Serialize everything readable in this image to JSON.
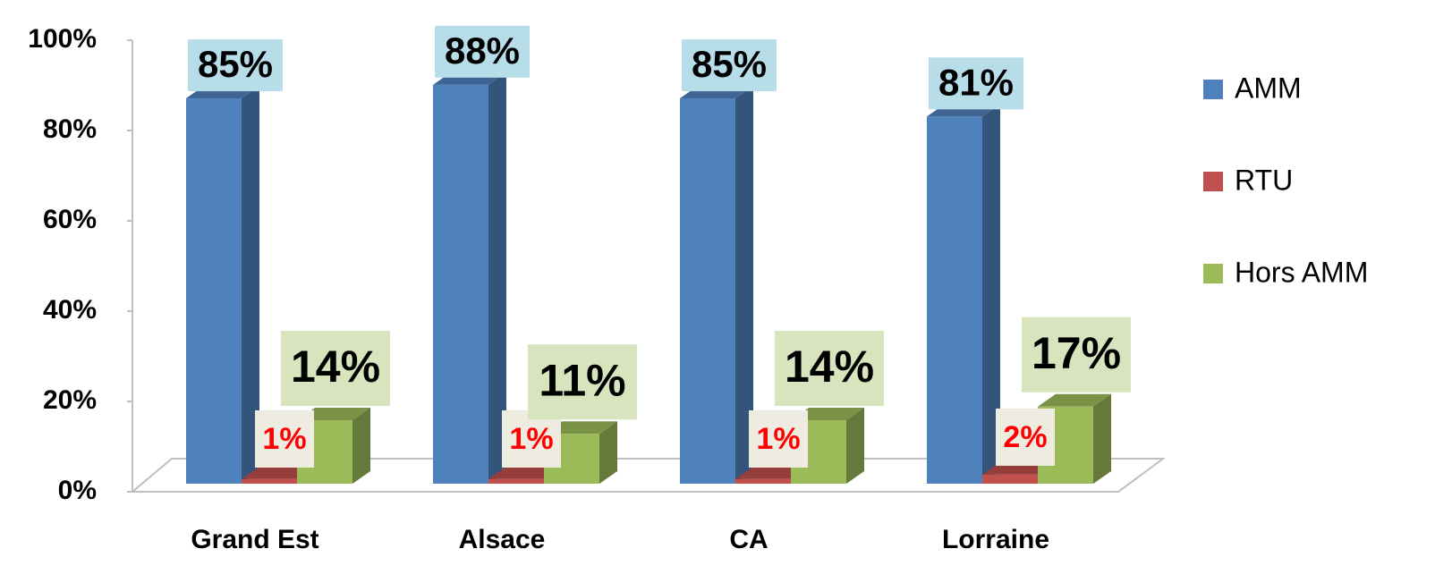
{
  "chart_data": {
    "type": "bar3d",
    "categories": [
      "Grand Est",
      "Alsace",
      "CA",
      "Lorraine"
    ],
    "series": [
      {
        "name": "AMM",
        "color": "#4f81bd",
        "values": [
          85,
          88,
          85,
          81
        ],
        "value_labels": [
          "85%",
          "88%",
          "85%",
          "81%"
        ]
      },
      {
        "name": "RTU",
        "color": "#c0504d",
        "values": [
          1,
          1,
          1,
          2
        ],
        "value_labels": [
          "1%",
          "1%",
          "1%",
          "2%"
        ]
      },
      {
        "name": "Hors AMM",
        "color": "#9bbb59",
        "values": [
          14,
          11,
          14,
          17
        ],
        "value_labels": [
          "14%",
          "11%",
          "14%",
          "17%"
        ]
      }
    ],
    "ylim": [
      0,
      100
    ],
    "yticks": [
      {
        "value": 0,
        "label": "0%"
      },
      {
        "value": 20,
        "label": "20%"
      },
      {
        "value": 40,
        "label": "40%"
      },
      {
        "value": 60,
        "label": "60%"
      },
      {
        "value": 80,
        "label": "80%"
      },
      {
        "value": 100,
        "label": "100%"
      }
    ],
    "legend": "right"
  }
}
